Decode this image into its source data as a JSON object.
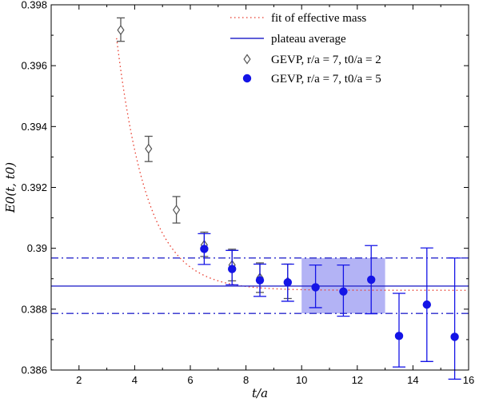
{
  "chart_data": {
    "type": "scatter",
    "xlabel": "t/a",
    "ylabel": "E0(t, t0)",
    "xlim": [
      1,
      16
    ],
    "ylim": [
      0.386,
      0.398
    ],
    "x_ticks": [
      2,
      4,
      6,
      8,
      10,
      12,
      14,
      16
    ],
    "x_tick_labels": [
      "2",
      "4",
      "6",
      "8",
      "10",
      "12",
      "14",
      "16"
    ],
    "y_ticks": [
      0.386,
      0.388,
      0.39,
      0.392,
      0.394,
      0.396,
      0.398
    ],
    "y_tick_labels": [
      "0.386",
      "0.388",
      "0.39",
      "0.392",
      "0.394",
      "0.396",
      "0.398"
    ],
    "grid": false,
    "legend_position": "top-right",
    "legend": [
      {
        "label": "fit of effective mass",
        "style": "dotted-line",
        "color": "#e8392a"
      },
      {
        "label": "plateau average",
        "style": "solid-line",
        "color": "#2a2acc"
      },
      {
        "label": "GEVP, r/a = 7, t0/a = 2",
        "style": "open-diamond",
        "color": "#555555"
      },
      {
        "label": "GEVP, r/a = 7, t0/a = 5",
        "style": "filled-circle",
        "color": "#1414e6"
      }
    ],
    "series": [
      {
        "name": "GEVP, r/a = 7, t0/a = 2",
        "marker": "open-diamond",
        "color": "#555555",
        "x": [
          3.5,
          4.5,
          5.5,
          6.5,
          7.5,
          8.5,
          9.5
        ],
        "y": [
          0.39717,
          0.39327,
          0.39126,
          0.39011,
          0.38945,
          0.38903,
          0.3889
        ],
        "err_low": [
          0.3968,
          0.39285,
          0.39083,
          0.38973,
          0.38893,
          0.38855,
          0.38835
        ],
        "err_high": [
          0.39757,
          0.39368,
          0.3917,
          0.39053,
          0.38997,
          0.38952,
          0.38948
        ]
      },
      {
        "name": "GEVP, r/a = 7, t0/a = 5",
        "marker": "filled-circle",
        "color": "#1414e6",
        "x": [
          6.5,
          7.5,
          8.5,
          9.5,
          10.5,
          11.5,
          12.5,
          13.5,
          14.5,
          15.5
        ],
        "y": [
          0.38998,
          0.38932,
          0.38895,
          0.38888,
          0.38872,
          0.38858,
          0.38897,
          0.38712,
          0.38815,
          0.38709
        ],
        "err_low": [
          0.38947,
          0.3888,
          0.38842,
          0.38826,
          0.38805,
          0.38777,
          0.38785,
          0.3861,
          0.38628,
          0.3857
        ],
        "err_high": [
          0.39048,
          0.38993,
          0.38948,
          0.38948,
          0.38945,
          0.38945,
          0.39009,
          0.38852,
          0.39001,
          0.38968
        ]
      }
    ],
    "fit_curve": {
      "name": "fit of effective mass",
      "color": "#e8392a",
      "asymptote": 0.38862,
      "amplitude_at_t3": 0.01135,
      "decay_rate": 0.9,
      "x_range": [
        3.35,
        16
      ]
    },
    "plateau": {
      "name": "plateau average",
      "color": "#2a2acc",
      "value": 0.38876,
      "upper": 0.38968,
      "lower": 0.38786,
      "fit_window": [
        10,
        13
      ],
      "band_color": "#b3b3f5"
    }
  }
}
